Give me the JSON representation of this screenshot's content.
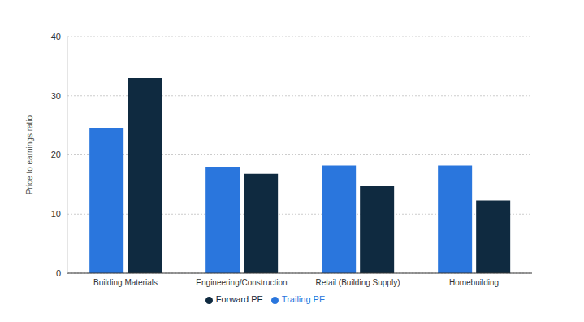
{
  "chart_data": {
    "type": "bar",
    "y_label": "Price to earnings ratio",
    "categories": [
      "Building Materials",
      "Engineering/Construction",
      "Retail (Building Supply)",
      "Homebuilding"
    ],
    "series": [
      {
        "name": "Trailing PE",
        "color": "#2a76dd",
        "values": [
          24.5,
          18,
          18.2,
          18.2
        ]
      },
      {
        "name": "Forward PE",
        "color": "#0f2a40",
        "values": [
          33,
          16.8,
          14.7,
          12.3
        ]
      }
    ],
    "ylim": [
      0,
      40
    ],
    "yticks": [
      0,
      10,
      20,
      30,
      40
    ],
    "grid": true,
    "legend": "bottom"
  }
}
